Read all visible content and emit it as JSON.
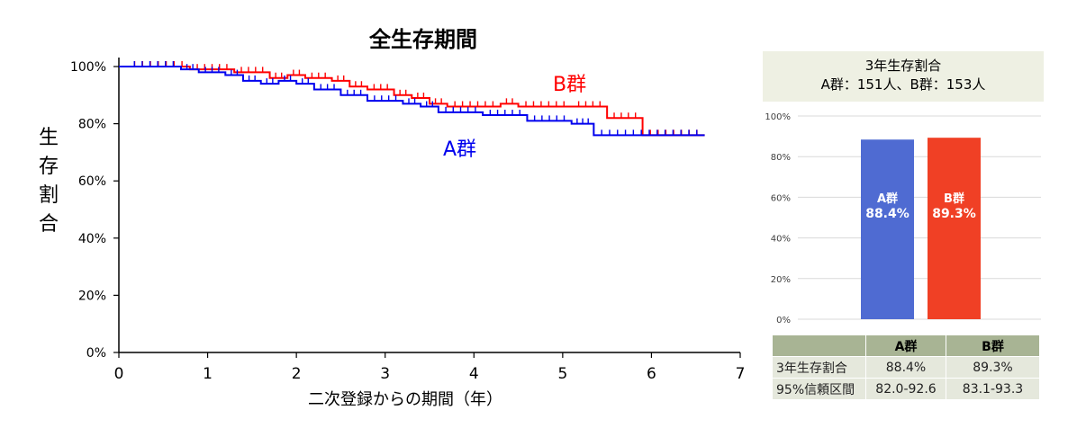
{
  "chart_data": [
    {
      "type": "line",
      "title": "全生存期間",
      "xlabel": "二次登録からの期間（年）",
      "ylabel": "生存割合",
      "xlim": [
        0,
        7
      ],
      "ylim": [
        0,
        100
      ],
      "x_ticks": [
        "0",
        "1",
        "2",
        "3",
        "4",
        "5",
        "6",
        "7"
      ],
      "y_ticks": [
        "0%",
        "20%",
        "40%",
        "60%",
        "80%",
        "100%"
      ],
      "series": [
        {
          "name": "A群",
          "color": "#0000ee",
          "x": [
            0,
            0.7,
            0.9,
            1.2,
            1.4,
            1.6,
            1.8,
            2.0,
            2.2,
            2.5,
            2.8,
            3.2,
            3.4,
            3.6,
            4.1,
            4.6,
            5.1,
            5.35,
            6.6
          ],
          "y": [
            100,
            99,
            98,
            97,
            95,
            94,
            95,
            94,
            92,
            90,
            88,
            87,
            86,
            84,
            83,
            81,
            80,
            76,
            76
          ]
        },
        {
          "name": "B群",
          "color": "#ff0000",
          "x": [
            0,
            0.8,
            1.3,
            1.7,
            1.9,
            2.1,
            2.4,
            2.6,
            2.8,
            3.1,
            3.3,
            3.5,
            3.7,
            4.3,
            4.5,
            5.1,
            5.5,
            5.9,
            6.6
          ],
          "y": [
            100,
            99,
            98,
            96,
            97,
            96,
            95,
            93,
            92,
            90,
            89,
            87,
            86,
            87,
            86,
            86,
            82,
            76,
            76
          ]
        }
      ]
    },
    {
      "type": "bar",
      "title": "3年生存割合",
      "subtitle": "A群：151人、B群：153人",
      "ylim": [
        0,
        100
      ],
      "y_ticks": [
        "0%",
        "20%",
        "40%",
        "60%",
        "80%",
        "100%"
      ],
      "categories": [
        "A群",
        "B群"
      ],
      "values": [
        88.4,
        89.3
      ],
      "value_labels": [
        "88.4%",
        "89.3%"
      ],
      "colors": [
        "#4f6bd2",
        "#f04025"
      ]
    }
  ],
  "chart": {
    "title": "全生存期間",
    "ylabel_chars": [
      "生",
      "存",
      "割",
      "合"
    ],
    "xlabel": "二次登録からの期間（年）",
    "label_a": "A群",
    "label_b": "B群"
  },
  "rate_box": {
    "title": "3年生存割合",
    "subtitle": "A群：151人、B群：153人"
  },
  "table": {
    "headers": [
      "",
      "A群",
      "B群"
    ],
    "rows": [
      [
        "3年生存割合",
        "88.4%",
        "89.3%"
      ],
      [
        "95%信頼区間",
        "82.0-92.6",
        "83.1-93.3"
      ]
    ]
  }
}
